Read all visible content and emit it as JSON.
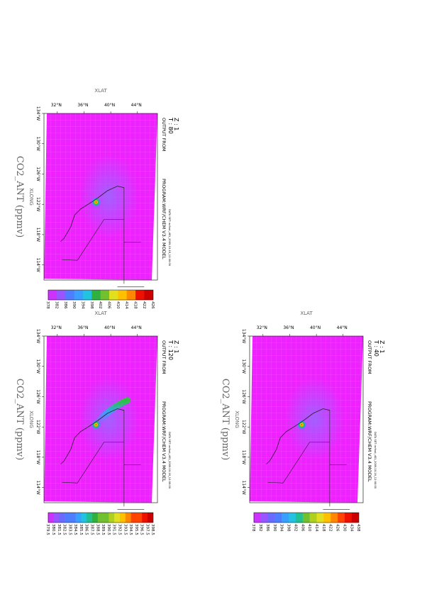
{
  "panels": [
    {
      "z_label": "Z : 1",
      "t_label": "T : 80",
      "output_from": "OUTPUT FROM",
      "program": "PROGRAM:WRF/CHEM V3.4 MODEL",
      "data_set": "DATA SET: wrfout_d01_2009-10-16_12:00:00",
      "xlat": "XLAT",
      "xlong": "XLONG",
      "variable_title": "CO2_ANT (ppmv)",
      "lat_ticks": [
        "32°N",
        "36°N",
        "40°N",
        "44°N"
      ],
      "lon_ticks": [
        "134°W",
        "130°W",
        "126°W",
        "122°W",
        "118°W",
        "114°W"
      ],
      "colorbar_labels": [
        "378",
        "382",
        "386",
        "390",
        "394",
        "398",
        "402",
        "406",
        "410",
        "414",
        "418",
        "422",
        "426"
      ]
    },
    {
      "z_label": "Z : 1",
      "t_label": "T : 40",
      "output_from": "OUTPUT FROM",
      "program": "PROGRAM:WRF/CHEM V3.4 MODEL",
      "data_set": "DATA SET: wrfout_d01_2009-10-16_12:00:00",
      "xlat": "XLAT",
      "xlong": "XLONG",
      "variable_title": "CO2_ANT (ppmv)",
      "lat_ticks": [
        "32°N",
        "36°N",
        "40°N",
        "44°N"
      ],
      "lon_ticks": [
        "134°W",
        "130°W",
        "126°W",
        "122°W",
        "118°W",
        "114°W"
      ],
      "colorbar_labels": [
        "378",
        "382",
        "386",
        "390",
        "394",
        "398",
        "402",
        "406",
        "410",
        "414",
        "418",
        "422",
        "426",
        "430",
        "434",
        "438"
      ]
    },
    {
      "z_label": "Z : 1",
      "t_label": "T : 120",
      "output_from": "OUTPUT FROM",
      "program": "PROGRAM:WRF/CHEM V3.4 MODEL",
      "data_set": "DATA SET: wrfout_d01_2009-10-16_12:00:00",
      "xlat": "XLAT",
      "xlong": "XLONG",
      "variable_title": "CO2_ANT (ppmv)",
      "lat_ticks": [
        "32°N",
        "36°N",
        "40°N",
        "44°N"
      ],
      "lon_ticks": [
        "134°W",
        "130°W",
        "126°W",
        "122°W",
        "118°W",
        "114°W"
      ],
      "colorbar_labels": [
        "379.5",
        "380.5",
        "381.5",
        "382.5",
        "383.5",
        "384.5",
        "385.5",
        "386.5",
        "387.5",
        "388.5",
        "389.5",
        "390.5",
        "391.5",
        "392.5",
        "393.5",
        "394.5",
        "395.5",
        "396.5",
        "397.5",
        "398.5"
      ]
    }
  ],
  "colors": {
    "field_background": "#ee22ff",
    "colorbar": [
      "#cc33ff",
      "#9955ff",
      "#6a6aff",
      "#4f7dff",
      "#3aa0ff",
      "#22c2e0",
      "#20c090",
      "#30b040",
      "#70c030",
      "#b0d020",
      "#e0e020",
      "#ffc000",
      "#ff8800",
      "#ff4400",
      "#ee1100",
      "#cc0000"
    ]
  },
  "chart_data": [
    {
      "type": "heatmap",
      "title": "CO2_ANT (ppmv)",
      "time_step": "T : 80",
      "level": "Z : 1",
      "xlabel": "XLONG",
      "ylabel": "XLAT",
      "xlim": [
        -134,
        -112
      ],
      "ylim": [
        30,
        47
      ],
      "value_range": [
        378,
        426
      ],
      "background_value": 378,
      "hotspot": {
        "lon": -122.3,
        "lat": 37.8,
        "value": 426
      }
    },
    {
      "type": "heatmap",
      "title": "CO2_ANT (ppmv)",
      "time_step": "T : 40",
      "level": "Z : 1",
      "xlabel": "XLONG",
      "ylabel": "XLAT",
      "xlim": [
        -134,
        -112
      ],
      "ylim": [
        30,
        47
      ],
      "value_range": [
        378,
        438
      ],
      "background_value": 378,
      "hotspot": {
        "lon": -122.3,
        "lat": 37.8,
        "value": 438
      }
    },
    {
      "type": "heatmap",
      "title": "CO2_ANT (ppmv)",
      "time_step": "T : 120",
      "level": "Z : 1",
      "xlabel": "XLONG",
      "ylabel": "XLAT",
      "xlim": [
        -134,
        -112
      ],
      "ylim": [
        30,
        47
      ],
      "value_range": [
        379.5,
        398.5
      ],
      "background_value": 379.5,
      "hotspot": {
        "lon": -122.3,
        "lat": 37.8,
        "value": 398.5
      },
      "plume": {
        "toward_lon": -125.5,
        "toward_lat": 42.5
      }
    }
  ]
}
